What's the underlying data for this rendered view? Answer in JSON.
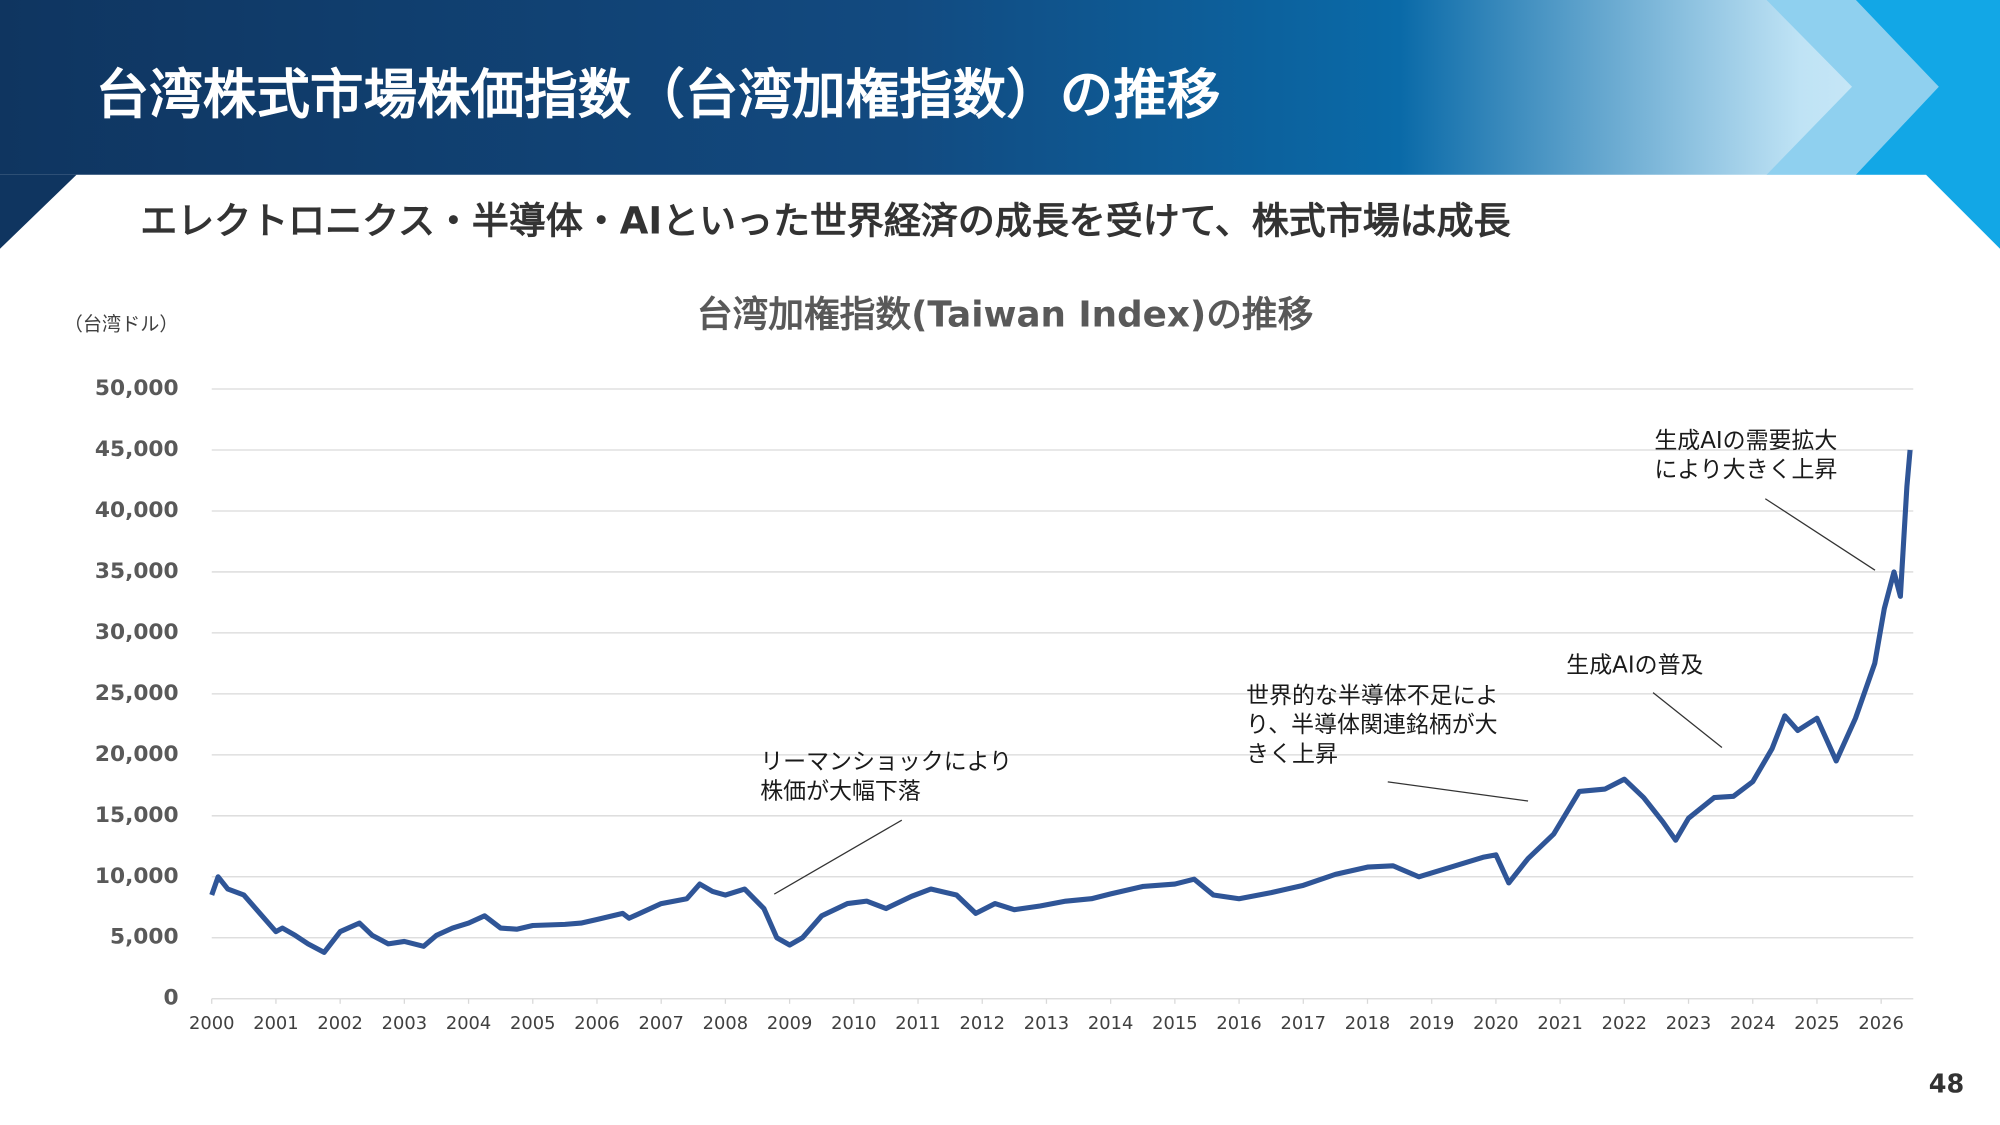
{
  "header": {
    "title": "台湾株式市場株価指数（台湾加権指数）の推移",
    "subtitle": "エレクトロニクス・半導体・AIといった世界経済の成長を受けて、株式市場は成長",
    "page_number": "48"
  },
  "chart_data": {
    "type": "line",
    "title": "台湾加権指数(Taiwan Index)の推移",
    "y_unit": "（台湾ドル）",
    "color": "#2f5597",
    "grid": true,
    "x": [
      2000.0,
      2000.1,
      2000.25,
      2000.5,
      2000.75,
      2001.0,
      2001.1,
      2001.3,
      2001.5,
      2001.75,
      2002.0,
      2002.3,
      2002.5,
      2002.75,
      2003.0,
      2003.3,
      2003.5,
      2003.75,
      2004.0,
      2004.25,
      2004.5,
      2004.75,
      2005.0,
      2005.5,
      2005.75,
      2006.0,
      2006.4,
      2006.5,
      2007.0,
      2007.4,
      2007.6,
      2007.8,
      2008.0,
      2008.3,
      2008.6,
      2008.8,
      2009.0,
      2009.2,
      2009.5,
      2009.9,
      2010.2,
      2010.5,
      2010.9,
      2011.2,
      2011.6,
      2011.9,
      2012.2,
      2012.5,
      2012.9,
      2013.3,
      2013.7,
      2014.0,
      2014.5,
      2015.0,
      2015.3,
      2015.6,
      2016.0,
      2016.5,
      2017.0,
      2017.5,
      2018.0,
      2018.4,
      2018.8,
      2019.3,
      2019.8,
      2020.0,
      2020.2,
      2020.5,
      2020.9,
      2021.3,
      2021.7,
      2022.0,
      2022.3,
      2022.6,
      2022.8,
      2023.0,
      2023.4,
      2023.7,
      2024.0,
      2024.3,
      2024.5,
      2024.7,
      2025.0,
      2025.3,
      2025.6,
      2025.9,
      2026.05,
      2026.2,
      2026.3,
      2026.4,
      2026.45
    ],
    "values": [
      8500,
      10000,
      9000,
      8500,
      7000,
      5500,
      5800,
      5200,
      4500,
      3800,
      5500,
      6200,
      5200,
      4500,
      4700,
      4300,
      5200,
      5800,
      6200,
      6800,
      5800,
      5700,
      6000,
      6100,
      6200,
      6500,
      7000,
      6600,
      7800,
      8200,
      9400,
      8800,
      8500,
      9000,
      7400,
      5000,
      4400,
      5000,
      6800,
      7800,
      8000,
      7400,
      8400,
      9000,
      8500,
      7000,
      7800,
      7300,
      7600,
      8000,
      8200,
      8600,
      9200,
      9400,
      9800,
      8500,
      8200,
      8700,
      9300,
      10200,
      10800,
      10900,
      10000,
      10800,
      11600,
      11800,
      9500,
      11500,
      13500,
      17000,
      17200,
      18000,
      16500,
      14500,
      13000,
      14800,
      16500,
      16600,
      17800,
      20500,
      23200,
      22000,
      23000,
      19500,
      23000,
      27500,
      32000,
      35000,
      33000,
      42000,
      45000
    ],
    "xlim": [
      2000,
      2026.5
    ],
    "xticks": [
      2000,
      2001,
      2002,
      2003,
      2004,
      2005,
      2006,
      2007,
      2008,
      2009,
      2010,
      2011,
      2012,
      2013,
      2014,
      2015,
      2016,
      2017,
      2018,
      2019,
      2020,
      2021,
      2022,
      2023,
      2024,
      2025,
      2026
    ],
    "ylim": [
      0,
      50000
    ],
    "yticks": [
      0,
      {
        "value": 5000,
        "label": "5,000"
      },
      {
        "value": 10000,
        "label": "10,000"
      },
      {
        "value": 15000,
        "label": "15,000"
      },
      {
        "value": 20000,
        "label": "20,000"
      },
      {
        "value": 25000,
        "label": "25,000"
      },
      {
        "value": 30000,
        "label": "30,000"
      },
      {
        "value": 35000,
        "label": "35,000"
      },
      {
        "value": 40000,
        "label": "40,000"
      },
      {
        "value": 45000,
        "label": "45,000"
      },
      {
        "value": 50000,
        "label": "50,000"
      }
    ],
    "annotations": [
      {
        "lines": [
          "リーマンショックにより",
          "株価が大幅下落"
        ]
      },
      {
        "lines": [
          "世界的な半導体不足によ",
          "り、半導体関連銘柄が大",
          "きく上昇"
        ]
      },
      {
        "lines": [
          "生成AIの普及"
        ]
      },
      {
        "lines": [
          "生成AIの需要拡大",
          "により大きく上昇"
        ]
      }
    ]
  }
}
